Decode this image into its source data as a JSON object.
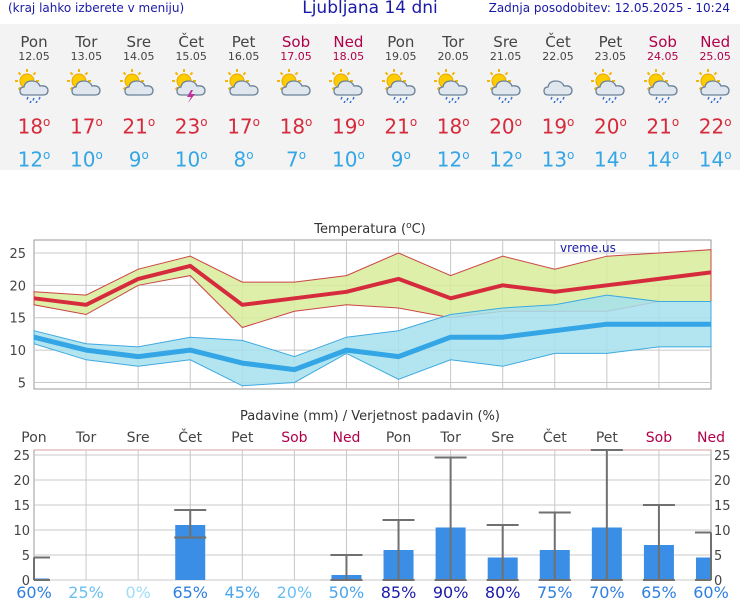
{
  "header": {
    "hint": "(kraj lahko izberete v meniju)",
    "title": "Ljubljana 14 dni",
    "updated": "Zadnja posodobitev: 12.05.2025 - 10:24"
  },
  "degree": "o",
  "days": [
    {
      "name": "Pon",
      "date": "12.05",
      "weekend": false,
      "icon": "sun-cloud-rain-icon",
      "max": "18",
      "min": "12"
    },
    {
      "name": "Tor",
      "date": "13.05",
      "weekend": false,
      "icon": "cloud-sun-icon",
      "max": "17",
      "min": "10"
    },
    {
      "name": "Sre",
      "date": "14.05",
      "weekend": false,
      "icon": "cloud-sun-icon",
      "max": "21",
      "min": "9"
    },
    {
      "name": "Čet",
      "date": "15.05",
      "weekend": false,
      "icon": "thunderstorm-icon",
      "max": "23",
      "min": "10"
    },
    {
      "name": "Pet",
      "date": "16.05",
      "weekend": false,
      "icon": "cloud-sun-icon",
      "max": "17",
      "min": "8"
    },
    {
      "name": "Sob",
      "date": "17.05",
      "weekend": true,
      "icon": "cloud-sun-icon",
      "max": "18",
      "min": "7"
    },
    {
      "name": "Ned",
      "date": "18.05",
      "weekend": true,
      "icon": "sun-cloud-rain-icon",
      "max": "19",
      "min": "10"
    },
    {
      "name": "Pon",
      "date": "19.05",
      "weekend": false,
      "icon": "sun-cloud-rain-icon",
      "max": "21",
      "min": "9"
    },
    {
      "name": "Tor",
      "date": "20.05",
      "weekend": false,
      "icon": "sun-cloud-rain-icon",
      "max": "18",
      "min": "12"
    },
    {
      "name": "Sre",
      "date": "21.05",
      "weekend": false,
      "icon": "sun-cloud-rain-icon",
      "max": "20",
      "min": "12"
    },
    {
      "name": "Čet",
      "date": "22.05",
      "weekend": false,
      "icon": "cloud-rain-icon",
      "max": "19",
      "min": "13"
    },
    {
      "name": "Pet",
      "date": "23.05",
      "weekend": false,
      "icon": "sun-cloud-rain-icon",
      "max": "20",
      "min": "14"
    },
    {
      "name": "Sob",
      "date": "24.05",
      "weekend": true,
      "icon": "sun-cloud-rain-icon",
      "max": "21",
      "min": "14"
    },
    {
      "name": "Ned",
      "date": "25.05",
      "weekend": true,
      "icon": "sun-cloud-rain-icon",
      "max": "22",
      "min": "14"
    }
  ],
  "colors": {
    "max": "#d62b3c",
    "min": "#34a6e6",
    "weekend": "#b0004a",
    "maxBand": "#d7ec9a",
    "minBand": "#a6e0ee",
    "bar": "#3a8ee6",
    "whisker": "#707070"
  },
  "chart_data": [
    {
      "type": "line",
      "title": "Temperatura (oC)",
      "watermark": "vreme.us",
      "categories": [
        "Pon",
        "Tor",
        "Sre",
        "Čet",
        "Pet",
        "Sob",
        "Ned",
        "Pon",
        "Tor",
        "Sre",
        "Čet",
        "Pet",
        "Sob",
        "Ned"
      ],
      "ylim": [
        4,
        27
      ],
      "yticks": [
        5,
        10,
        15,
        20,
        25
      ],
      "grid": true,
      "series": [
        {
          "name": "max",
          "values": [
            18,
            17,
            21,
            23,
            17,
            18,
            19,
            21,
            18,
            20,
            19,
            20,
            21,
            22
          ]
        },
        {
          "name": "min",
          "values": [
            12,
            10,
            9,
            10,
            8,
            7,
            10,
            9,
            12,
            12,
            13,
            14,
            14,
            14
          ]
        }
      ],
      "bands": [
        {
          "name": "max range",
          "low": [
            17,
            15.5,
            20,
            21.5,
            13.5,
            16,
            17,
            16.5,
            15,
            16,
            16,
            16,
            17.5,
            17.5
          ],
          "high": [
            19,
            18.5,
            22.5,
            24.5,
            20.5,
            20.5,
            21.5,
            25,
            21.5,
            24.5,
            22.5,
            24.5,
            25,
            25.5
          ]
        },
        {
          "name": "min range",
          "low": [
            11,
            8.5,
            7.5,
            8.5,
            4.5,
            5,
            9.5,
            5.5,
            8.5,
            7.5,
            9.5,
            9.5,
            10.5,
            10.5
          ],
          "high": [
            13,
            11,
            10.5,
            12,
            11.5,
            9,
            12,
            13,
            15.5,
            16.5,
            17,
            18.5,
            17.5,
            17.5
          ]
        }
      ]
    },
    {
      "type": "bar",
      "title": "Padavine (mm) / Verjetnost padavin (%)",
      "categories": [
        "Pon",
        "Tor",
        "Sre",
        "Čet",
        "Pet",
        "Sob",
        "Ned",
        "Pon",
        "Tor",
        "Sre",
        "Čet",
        "Pet",
        "Sob",
        "Ned"
      ],
      "ylim": [
        0,
        26
      ],
      "yticks": [
        0,
        5,
        10,
        15,
        20,
        25
      ],
      "values": [
        0.3,
        0,
        0,
        11,
        0,
        0,
        1,
        6,
        10.5,
        4.5,
        6,
        10.5,
        7,
        4.5
      ],
      "ranges": [
        [
          0,
          4.5
        ],
        null,
        null,
        [
          8.5,
          14
        ],
        null,
        null,
        [
          0,
          5
        ],
        [
          0,
          12
        ],
        [
          0,
          24.5
        ],
        [
          0,
          11
        ],
        [
          0,
          13.5
        ],
        [
          0,
          26
        ],
        [
          0,
          15
        ],
        [
          0,
          9.5
        ]
      ],
      "probabilities": [
        "60%",
        "25%",
        "0%",
        "65%",
        "45%",
        "20%",
        "50%",
        "85%",
        "90%",
        "80%",
        "75%",
        "70%",
        "65%",
        "60%"
      ]
    }
  ]
}
